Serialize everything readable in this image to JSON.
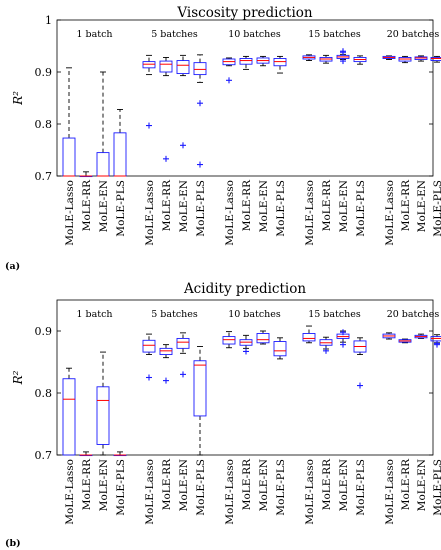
{
  "chart_data": [
    {
      "type": "box",
      "title": "Viscosity prediction",
      "panel_label": "(a)",
      "ylabel": "R²",
      "ylim": [
        0.7,
        1.0
      ],
      "yticks": [
        0.7,
        0.8,
        0.9,
        1.0
      ],
      "ytick_labels": [
        "0.7",
        "0.8",
        "0.9",
        "1"
      ],
      "categories": [
        "MoLE-Lasso",
        "MoLE-RR",
        "MoLE-EN",
        "MoLE-PLS"
      ],
      "groups": [
        {
          "label": "1 batch",
          "boxes": [
            {
              "whisker_low": 0.7,
              "q1": 0.7,
              "median": 0.7,
              "q3": 0.773,
              "whisker_high": 0.908,
              "outliers": []
            },
            {
              "whisker_low": 0.7,
              "q1": 0.7,
              "median": 0.7,
              "q3": 0.7,
              "whisker_high": 0.708,
              "outliers": []
            },
            {
              "whisker_low": 0.7,
              "q1": 0.7,
              "median": 0.7,
              "q3": 0.745,
              "whisker_high": 0.9,
              "outliers": []
            },
            {
              "whisker_low": 0.7,
              "q1": 0.7,
              "median": 0.7,
              "q3": 0.783,
              "whisker_high": 0.828,
              "outliers": []
            }
          ]
        },
        {
          "label": "5 batches",
          "boxes": [
            {
              "whisker_low": 0.895,
              "q1": 0.908,
              "median": 0.915,
              "q3": 0.92,
              "whisker_high": 0.932,
              "outliers": [
                0.797
              ]
            },
            {
              "whisker_low": 0.893,
              "q1": 0.9,
              "median": 0.915,
              "q3": 0.921,
              "whisker_high": 0.928,
              "outliers": [
                0.733
              ]
            },
            {
              "whisker_low": 0.893,
              "q1": 0.897,
              "median": 0.913,
              "q3": 0.922,
              "whisker_high": 0.932,
              "outliers": [
                0.759
              ]
            },
            {
              "whisker_low": 0.88,
              "q1": 0.895,
              "median": 0.905,
              "q3": 0.918,
              "whisker_high": 0.933,
              "outliers": [
                0.84,
                0.722
              ]
            }
          ]
        },
        {
          "label": "10 batches",
          "boxes": [
            {
              "whisker_low": 0.912,
              "q1": 0.914,
              "median": 0.92,
              "q3": 0.925,
              "whisker_high": 0.927,
              "outliers": [
                0.884
              ]
            },
            {
              "whisker_low": 0.905,
              "q1": 0.915,
              "median": 0.922,
              "q3": 0.926,
              "whisker_high": 0.93,
              "outliers": []
            },
            {
              "whisker_low": 0.912,
              "q1": 0.917,
              "median": 0.922,
              "q3": 0.927,
              "whisker_high": 0.93,
              "outliers": []
            },
            {
              "whisker_low": 0.898,
              "q1": 0.912,
              "median": 0.92,
              "q3": 0.926,
              "whisker_high": 0.93,
              "outliers": []
            }
          ]
        },
        {
          "label": "15 batches",
          "boxes": [
            {
              "whisker_low": 0.922,
              "q1": 0.925,
              "median": 0.928,
              "q3": 0.931,
              "whisker_high": 0.933,
              "outliers": []
            },
            {
              "whisker_low": 0.917,
              "q1": 0.921,
              "median": 0.925,
              "q3": 0.928,
              "whisker_high": 0.932,
              "outliers": []
            },
            {
              "whisker_low": 0.924,
              "q1": 0.926,
              "median": 0.929,
              "q3": 0.932,
              "whisker_high": 0.934,
              "outliers": [
                0.938,
                0.94,
                0.921
              ]
            },
            {
              "whisker_low": 0.915,
              "q1": 0.92,
              "median": 0.924,
              "q3": 0.928,
              "whisker_high": 0.931,
              "outliers": []
            }
          ]
        },
        {
          "label": "20 batches",
          "boxes": [
            {
              "whisker_low": 0.924,
              "q1": 0.926,
              "median": 0.928,
              "q3": 0.93,
              "whisker_high": 0.931,
              "outliers": []
            },
            {
              "whisker_low": 0.918,
              "q1": 0.921,
              "median": 0.925,
              "q3": 0.928,
              "whisker_high": 0.93,
              "outliers": []
            },
            {
              "whisker_low": 0.921,
              "q1": 0.924,
              "median": 0.927,
              "q3": 0.929,
              "whisker_high": 0.931,
              "outliers": []
            },
            {
              "whisker_low": 0.919,
              "q1": 0.922,
              "median": 0.926,
              "q3": 0.928,
              "whisker_high": 0.93,
              "outliers": []
            }
          ]
        }
      ]
    },
    {
      "type": "box",
      "title": "Acidity prediction",
      "panel_label": "(b)",
      "ylabel": "R²",
      "ylim": [
        0.7,
        0.95
      ],
      "yticks": [
        0.7,
        0.8,
        0.9
      ],
      "ytick_labels": [
        "0.7",
        "0.8",
        "0.9"
      ],
      "categories": [
        "MoLE-Lasso",
        "MoLE-RR",
        "MoLE-EN",
        "MoLE-PLS"
      ],
      "groups": [
        {
          "label": "1 batch",
          "boxes": [
            {
              "whisker_low": 0.7,
              "q1": 0.7,
              "median": 0.79,
              "q3": 0.823,
              "whisker_high": 0.84,
              "outliers": []
            },
            {
              "whisker_low": 0.7,
              "q1": 0.7,
              "median": 0.7,
              "q3": 0.7,
              "whisker_high": 0.705,
              "outliers": []
            },
            {
              "whisker_low": 0.7,
              "q1": 0.717,
              "median": 0.788,
              "q3": 0.81,
              "whisker_high": 0.866,
              "outliers": []
            },
            {
              "whisker_low": 0.7,
              "q1": 0.7,
              "median": 0.7,
              "q3": 0.7,
              "whisker_high": 0.705,
              "outliers": []
            }
          ]
        },
        {
          "label": "5 batches",
          "boxes": [
            {
              "whisker_low": 0.862,
              "q1": 0.866,
              "median": 0.877,
              "q3": 0.885,
              "whisker_high": 0.895,
              "outliers": [
                0.825
              ]
            },
            {
              "whisker_low": 0.857,
              "q1": 0.862,
              "median": 0.868,
              "q3": 0.872,
              "whisker_high": 0.878,
              "outliers": [
                0.82
              ]
            },
            {
              "whisker_low": 0.864,
              "q1": 0.872,
              "median": 0.882,
              "q3": 0.888,
              "whisker_high": 0.897,
              "outliers": [
                0.83
              ]
            },
            {
              "whisker_low": 0.7,
              "q1": 0.763,
              "median": 0.845,
              "q3": 0.852,
              "whisker_high": 0.875,
              "outliers": []
            }
          ]
        },
        {
          "label": "10 batches",
          "boxes": [
            {
              "whisker_low": 0.873,
              "q1": 0.879,
              "median": 0.886,
              "q3": 0.891,
              "whisker_high": 0.899,
              "outliers": []
            },
            {
              "whisker_low": 0.872,
              "q1": 0.877,
              "median": 0.882,
              "q3": 0.886,
              "whisker_high": 0.893,
              "outliers": [
                0.867
              ]
            },
            {
              "whisker_low": 0.879,
              "q1": 0.881,
              "median": 0.886,
              "q3": 0.896,
              "whisker_high": 0.9,
              "outliers": []
            },
            {
              "whisker_low": 0.855,
              "q1": 0.86,
              "median": 0.868,
              "q3": 0.883,
              "whisker_high": 0.889,
              "outliers": []
            }
          ]
        },
        {
          "label": "15 batches",
          "boxes": [
            {
              "whisker_low": 0.881,
              "q1": 0.884,
              "median": 0.888,
              "q3": 0.896,
              "whisker_high": 0.908,
              "outliers": []
            },
            {
              "whisker_low": 0.871,
              "q1": 0.877,
              "median": 0.881,
              "q3": 0.886,
              "whisker_high": 0.89,
              "outliers": [
                0.868
              ]
            },
            {
              "whisker_low": 0.882,
              "q1": 0.888,
              "median": 0.891,
              "q3": 0.895,
              "whisker_high": 0.9,
              "outliers": [
                0.898,
                0.878
              ]
            },
            {
              "whisker_low": 0.862,
              "q1": 0.866,
              "median": 0.875,
              "q3": 0.884,
              "whisker_high": 0.889,
              "outliers": [
                0.812
              ]
            }
          ]
        },
        {
          "label": "20 batches",
          "boxes": [
            {
              "whisker_low": 0.887,
              "q1": 0.889,
              "median": 0.892,
              "q3": 0.895,
              "whisker_high": 0.897,
              "outliers": []
            },
            {
              "whisker_low": 0.881,
              "q1": 0.882,
              "median": 0.884,
              "q3": 0.886,
              "whisker_high": 0.887,
              "outliers": []
            },
            {
              "whisker_low": 0.888,
              "q1": 0.889,
              "median": 0.891,
              "q3": 0.893,
              "whisker_high": 0.895,
              "outliers": []
            },
            {
              "whisker_low": 0.881,
              "q1": 0.884,
              "median": 0.888,
              "q3": 0.891,
              "whisker_high": 0.894,
              "outliers": [
                0.88,
                0.878
              ]
            }
          ]
        }
      ]
    }
  ],
  "colors": {
    "box": "#1a1aff",
    "median": "#ff0000",
    "whisker": "#000000"
  }
}
